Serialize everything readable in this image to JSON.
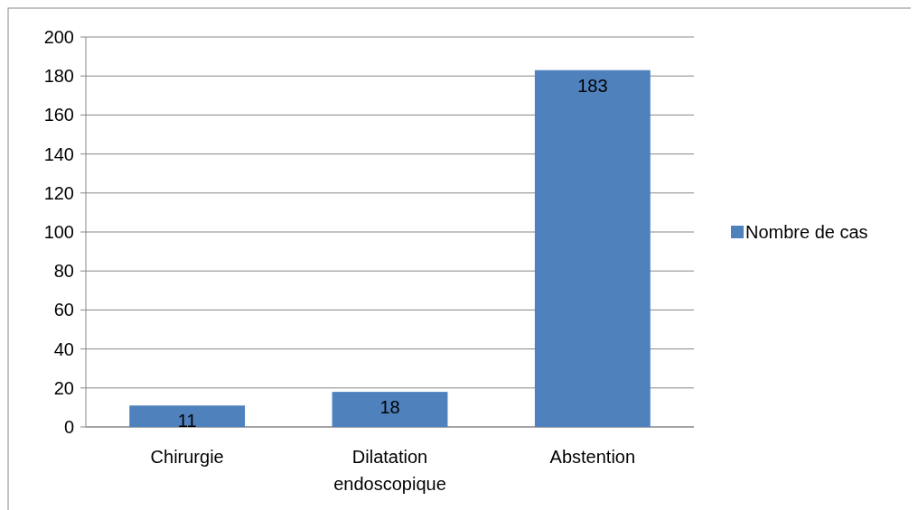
{
  "chart_data": {
    "type": "bar",
    "categories": [
      "Chirurgie",
      "Dilatation endoscopique",
      "Abstention"
    ],
    "series": [
      {
        "name": "Nombre de cas",
        "color": "#4f81bd",
        "values": [
          11,
          18,
          183
        ]
      }
    ],
    "ylim": [
      0,
      200
    ],
    "yticks": [
      0,
      20,
      40,
      60,
      80,
      100,
      120,
      140,
      160,
      180,
      200
    ],
    "grid": "y",
    "legend": "right",
    "data_labels": true
  }
}
